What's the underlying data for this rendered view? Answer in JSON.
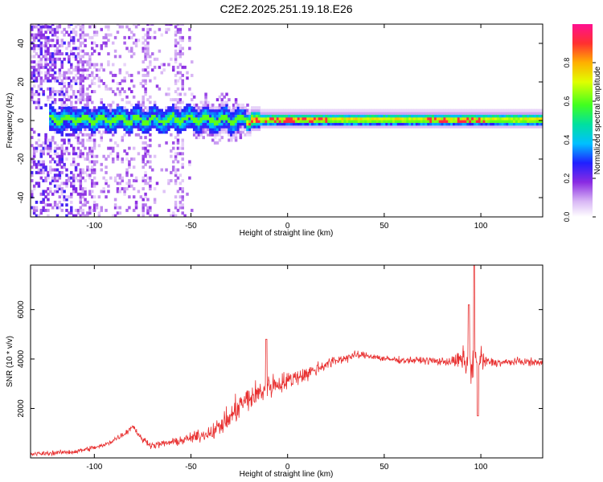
{
  "title": "C2E2.2025.251.19.18.E26",
  "colors": {
    "snr_line": "#e83030",
    "axis": "#000000",
    "background": "#ffffff"
  },
  "chart_data": [
    {
      "type": "heatmap",
      "name": "spectrogram",
      "title": "C2E2.2025.251.19.18.E26",
      "xlabel": "Height of straight line (km)",
      "ylabel": "Frequency (Hz)",
      "xlim": [
        -133,
        132
      ],
      "ylim": [
        -50,
        50
      ],
      "xticks": [
        -100,
        -50,
        0,
        50,
        100
      ],
      "yticks": [
        -40,
        -20,
        0,
        20,
        40
      ],
      "colorbar": {
        "label": "Normalized spectral amplitude",
        "range": [
          0.0,
          1.0
        ],
        "ticks": [
          0.0,
          0.2,
          0.4,
          0.6,
          0.8
        ]
      },
      "description_points": {
        "ridge_frequency_hz": 0,
        "band_halfwidth_hz_left": 6,
        "band_halfwidth_hz_right": 3,
        "noise_region_km": [
          -133,
          -50
        ],
        "peak_amplitude_regions_km": [
          [
            -22,
            20
          ],
          [
            72,
            102
          ]
        ]
      }
    },
    {
      "type": "line",
      "name": "snr",
      "xlabel": "Height of straight line (km)",
      "ylabel": "SNR (10 * v/v)",
      "xlim": [
        -133,
        132
      ],
      "ylim": [
        0,
        7800
      ],
      "xticks": [
        -100,
        -50,
        0,
        50,
        100
      ],
      "yticks": [
        2000,
        4000,
        6000
      ],
      "series": [
        {
          "name": "SNR",
          "anchors_x": [
            -133,
            -110,
            -95,
            -84,
            -80,
            -76,
            -70,
            -55,
            -45,
            -38,
            -30,
            -25,
            -20,
            -15,
            -10,
            -5,
            0,
            5,
            10,
            20,
            30,
            35,
            40,
            45,
            50,
            60,
            70,
            80,
            85,
            90,
            93,
            95,
            96,
            97,
            98,
            100,
            102,
            110,
            120,
            132
          ],
          "anchors_y": [
            150,
            250,
            500,
            1000,
            1300,
            800,
            500,
            700,
            900,
            1100,
            1600,
            2100,
            2400,
            2600,
            2900,
            3000,
            3100,
            3300,
            3400,
            3800,
            4050,
            4150,
            4150,
            4100,
            4000,
            3950,
            3950,
            3900,
            3900,
            3950,
            3900,
            3900,
            4000,
            3900,
            3900,
            3950,
            3900,
            3850,
            3900,
            3850
          ],
          "noise_amplitude_x": [
            -133,
            -100,
            -60,
            -40,
            -30,
            -20,
            -10,
            0,
            20,
            40,
            60,
            85,
            92,
            96,
            100,
            104,
            132
          ],
          "noise_amplitude_y": [
            120,
            150,
            200,
            400,
            700,
            800,
            700,
            550,
            350,
            200,
            180,
            250,
            900,
            1900,
            900,
            250,
            200
          ],
          "peaks": [
            {
              "x": 96.5,
              "y": 7800
            },
            {
              "x": 93.8,
              "y": 6200
            },
            {
              "x": 98.5,
              "y": 1700
            },
            {
              "x": -11,
              "y": 4800
            }
          ]
        }
      ]
    }
  ]
}
